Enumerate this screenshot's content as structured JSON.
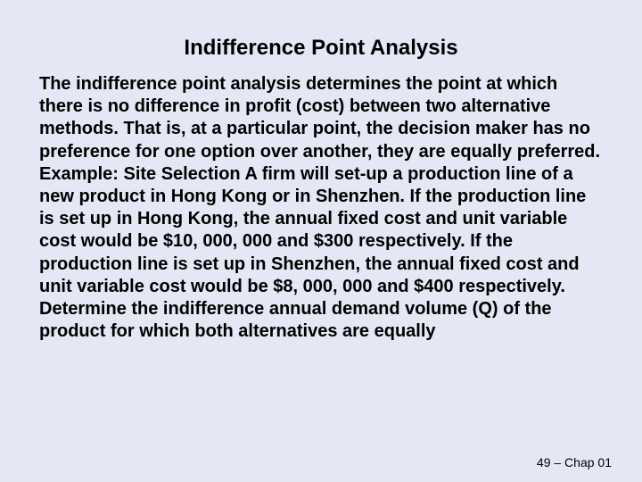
{
  "slide": {
    "background_color": "#e3e8f4",
    "text_color": "#000000",
    "title": "Indifference Point Analysis",
    "title_fontsize": 24,
    "title_fontweight": "bold",
    "body_fontsize": 20,
    "body_fontweight": "bold",
    "body_line_height": 1.26,
    "body": "The indifference point analysis determines the point at which there is no difference in profit (cost) between two alternative methods. That is, at a particular point, the decision maker has no preference for one option over another, they are equally preferred.\nExample: Site Selection\nA firm will set-up a production line of a new product in Hong Kong or in Shenzhen.\nIf the production line is set up in Hong Kong, the annual fixed cost and unit variable cost would be $10, 000, 000 and $300 respectively.\nIf the production line is set up in Shenzhen, the annual fixed cost and unit variable cost would be $8, 000, 000 and $400 respectively.\nDetermine the indifference annual demand volume (Q) of the product for which both alternatives are equally",
    "footer": "49 – Chap 01",
    "footer_fontsize": 14
  }
}
